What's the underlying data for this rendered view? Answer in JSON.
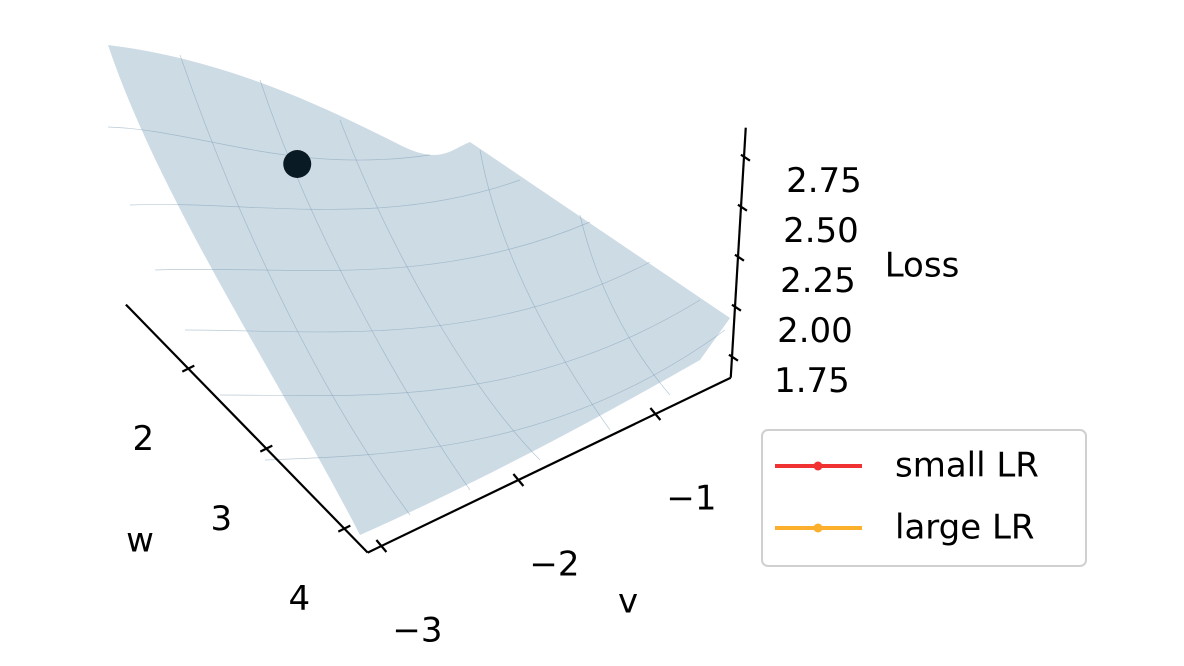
{
  "chart_data": {
    "type": "surface3d",
    "x_label": "w",
    "y_label": "v",
    "z_label": "Loss",
    "xlim": [
      1.2,
      4.3
    ],
    "ylim": [
      -3.1,
      -0.45
    ],
    "zlim": [
      1.65,
      2.9
    ],
    "xticks": [
      2,
      3,
      4
    ],
    "yticks": [
      {
        "value": -3,
        "label": "−3"
      },
      {
        "value": -2,
        "label": "−2"
      },
      {
        "value": -1,
        "label": "−1"
      }
    ],
    "zticks": [
      1.75,
      {
        "value": 2,
        "label": "2.00"
      },
      2.25,
      {
        "value": 2.5,
        "label": "2.50"
      },
      2.75
    ],
    "point": {
      "x": 1.4,
      "y": -2.0,
      "z": 2.07,
      "color": "#0a1a24"
    },
    "surface_color": "#cddbe5",
    "legend_position": "lower right",
    "series": [
      {
        "name": "small LR",
        "color": "#f03232",
        "values": []
      },
      {
        "name": "large LR",
        "color": "#fbaf2a",
        "values": []
      }
    ]
  }
}
